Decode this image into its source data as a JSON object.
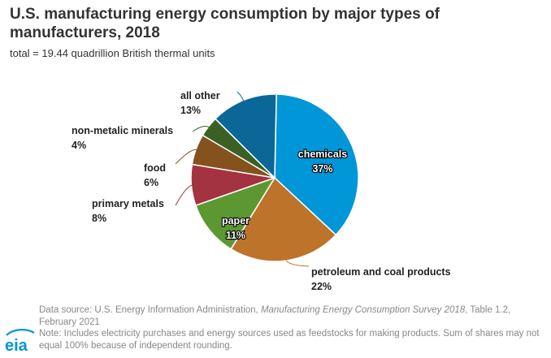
{
  "title": "U.S. manufacturing energy consumption by major types of manufacturers, 2018",
  "subtitle": "total = 19.44 quadrillion British thermal units",
  "chart_data": {
    "type": "pie",
    "title": "U.S. manufacturing energy consumption by major types of manufacturers, 2018",
    "subtitle": "total = 19.44 quadrillion British thermal units",
    "slices": [
      {
        "name": "chemicals",
        "value": 37,
        "label": "37%",
        "color": "#0096d7"
      },
      {
        "name": "petroleum and coal products",
        "value": 22,
        "label": "22%",
        "color": "#bd732a"
      },
      {
        "name": "paper",
        "value": 11,
        "label": "11%",
        "color": "#5d9732"
      },
      {
        "name": "primary metals",
        "value": 8,
        "label": "8%",
        "color": "#a33340"
      },
      {
        "name": "food",
        "value": 6,
        "label": "6%",
        "color": "#85511d"
      },
      {
        "name": "non-metalic minerals",
        "value": 4,
        "label": "4%",
        "color": "#3b6025"
      },
      {
        "name": "all other",
        "value": 13,
        "label": "13%",
        "color": "#0a6798"
      }
    ]
  },
  "footer": {
    "source_prefix": "Data source: U.S. Energy Information Administration, ",
    "source_title": "Manufacturing Energy Consumption Survey 2018",
    "source_suffix": ", Table 1.2, February 2021",
    "note": "Note: Includes electricity purchases and energy sources used as feedstocks for making products. Sum of shares may not equal 100% because of independent rounding."
  },
  "logo": {
    "text": "eia",
    "icon": "eia-logo-icon",
    "color": "#0096d7"
  }
}
